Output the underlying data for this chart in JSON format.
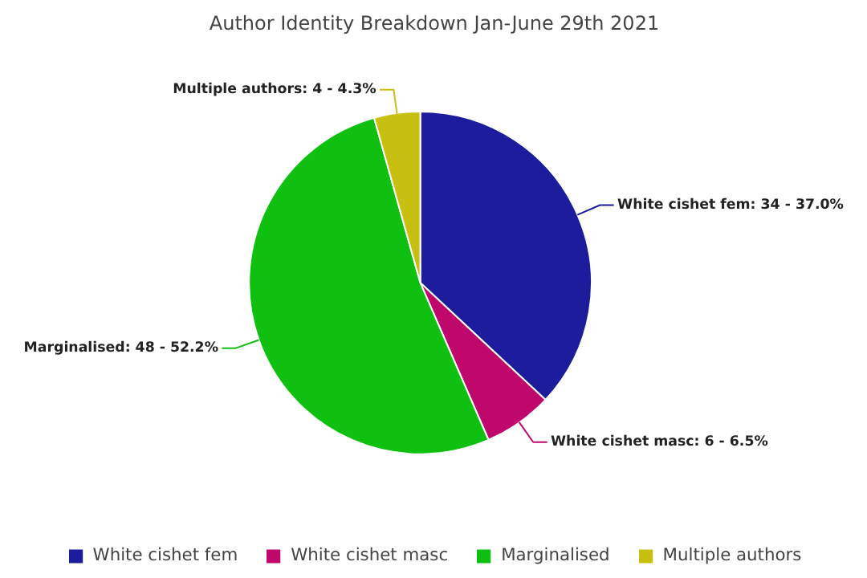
{
  "chart_data": {
    "type": "pie",
    "title": "Author Identity Breakdown Jan-June 29th 2021",
    "categories": [
      "White cishet fem",
      "White cishet masc",
      "Marginalised",
      "Multiple authors"
    ],
    "values": [
      34,
      6,
      48,
      4
    ],
    "colors": [
      "#1c1c9c",
      "#c0086c",
      "#10c010",
      "#c8c010"
    ],
    "value_labels": [
      "White cishet fem: 34 - 37.0%",
      "White cishet masc: 6 - 6.5%",
      "Marginalised: 48 - 52.2%",
      "Multiple authors: 4 - 4.3%"
    ],
    "legend": "bottom"
  }
}
